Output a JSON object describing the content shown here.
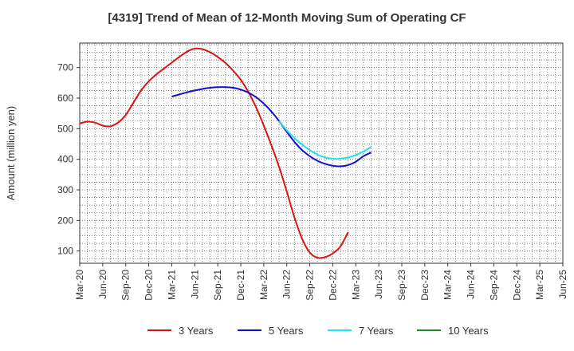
{
  "chart_data": {
    "type": "line",
    "title": "[4319]  Trend of Mean of 12-Month Moving Sum of Operating CF",
    "ylabel": "Amount (million yen)",
    "xlabel": "",
    "ylim": [
      60,
      780
    ],
    "yticks": [
      100,
      200,
      300,
      400,
      500,
      600,
      700
    ],
    "x_tick_labels": [
      "Mar-20",
      "Jun-20",
      "Sep-20",
      "Dec-20",
      "Mar-21",
      "Jun-21",
      "Sep-21",
      "Dec-21",
      "Mar-22",
      "Jun-22",
      "Sep-22",
      "Dec-22",
      "Mar-23",
      "Jun-23",
      "Sep-23",
      "Dec-23",
      "Mar-24",
      "Jun-24",
      "Sep-24",
      "Dec-24",
      "Mar-25",
      "Jun-25"
    ],
    "grid": true,
    "legend_position": "bottom",
    "series": [
      {
        "name": "3 Years",
        "color": "#dd1111",
        "points": [
          [
            0,
            517
          ],
          [
            1,
            523
          ],
          [
            2,
            520
          ],
          [
            3,
            510
          ],
          [
            4,
            508
          ],
          [
            5,
            520
          ],
          [
            6,
            545
          ],
          [
            7,
            585
          ],
          [
            8,
            625
          ],
          [
            9,
            655
          ],
          [
            10,
            678
          ],
          [
            11,
            697
          ],
          [
            12,
            716
          ],
          [
            13,
            735
          ],
          [
            14,
            752
          ],
          [
            15,
            762
          ],
          [
            16,
            760
          ],
          [
            17,
            750
          ],
          [
            18,
            735
          ],
          [
            19,
            715
          ],
          [
            20,
            690
          ],
          [
            21,
            660
          ],
          [
            22,
            620
          ],
          [
            23,
            570
          ],
          [
            24,
            510
          ],
          [
            25,
            445
          ],
          [
            26,
            375
          ],
          [
            27,
            295
          ],
          [
            28,
            210
          ],
          [
            29,
            140
          ],
          [
            30,
            95
          ],
          [
            31,
            78
          ],
          [
            32,
            80
          ],
          [
            33,
            92
          ],
          [
            34,
            115
          ],
          [
            35,
            162
          ]
        ]
      },
      {
        "name": "5 Years",
        "color": "#1111cc",
        "points": [
          [
            12,
            605
          ],
          [
            13,
            612
          ],
          [
            14,
            619
          ],
          [
            15,
            625
          ],
          [
            16,
            630
          ],
          [
            17,
            634
          ],
          [
            18,
            636
          ],
          [
            19,
            636
          ],
          [
            20,
            634
          ],
          [
            21,
            628
          ],
          [
            22,
            618
          ],
          [
            23,
            603
          ],
          [
            24,
            582
          ],
          [
            25,
            556
          ],
          [
            26,
            525
          ],
          [
            27,
            490
          ],
          [
            28,
            457
          ],
          [
            29,
            430
          ],
          [
            30,
            410
          ],
          [
            31,
            395
          ],
          [
            32,
            385
          ],
          [
            33,
            379
          ],
          [
            34,
            377
          ],
          [
            35,
            381
          ],
          [
            36,
            392
          ],
          [
            37,
            410
          ],
          [
            38,
            422
          ]
        ]
      },
      {
        "name": "7 Years",
        "color": "#22e0ee",
        "points": [
          [
            26,
            525
          ],
          [
            27,
            495
          ],
          [
            28,
            470
          ],
          [
            29,
            448
          ],
          [
            30,
            430
          ],
          [
            31,
            415
          ],
          [
            32,
            406
          ],
          [
            33,
            402
          ],
          [
            34,
            402
          ],
          [
            35,
            406
          ],
          [
            36,
            414
          ],
          [
            37,
            426
          ],
          [
            38,
            440
          ]
        ]
      },
      {
        "name": "10 Years",
        "color": "#228822",
        "points": []
      }
    ]
  }
}
